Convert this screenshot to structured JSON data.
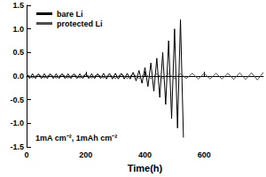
{
  "chart_data": {
    "type": "line",
    "xlabel": "Time(h)",
    "annotation": "1mA cm⁻², 1mAh cm⁻²",
    "xlim": [
      0,
      800
    ],
    "xticks": [
      0,
      200,
      400,
      600
    ],
    "ylim": [
      -1.5,
      1.5
    ],
    "yticks": [
      {
        "value": -1.5,
        "label": "-1.5"
      },
      {
        "value": -1,
        "label": "-1.0"
      },
      {
        "value": -0.5,
        "label": "-0.5"
      },
      {
        "value": 0,
        "label": "0.0"
      },
      {
        "value": 0.5,
        "label": "0.5"
      },
      {
        "value": 1,
        "label": "1.0"
      },
      {
        "value": 1.5,
        "label": "1.5"
      }
    ],
    "grid": false,
    "legend": "upper left",
    "series": [
      {
        "name": "bare Li",
        "color": "#000000",
        "x": [
          0,
          10,
          20,
          30,
          40,
          50,
          60,
          70,
          80,
          90,
          100,
          110,
          120,
          130,
          140,
          150,
          160,
          170,
          180,
          190,
          200,
          210,
          220,
          230,
          240,
          250,
          260,
          270,
          280,
          290,
          300,
          310,
          320,
          330,
          340,
          350,
          360,
          370,
          380,
          390,
          400,
          410,
          420,
          430,
          440,
          450,
          460,
          470,
          480,
          490,
          500,
          510,
          520,
          530
        ],
        "values": [
          0.05,
          -0.05,
          0.05,
          -0.05,
          0.05,
          -0.05,
          0.05,
          -0.05,
          0.05,
          -0.05,
          0.05,
          -0.05,
          0.05,
          -0.05,
          0.05,
          -0.05,
          0.05,
          -0.05,
          0.05,
          -0.05,
          0.05,
          -0.05,
          0.05,
          -0.05,
          0.05,
          -0.05,
          0.06,
          -0.06,
          0.06,
          -0.06,
          0.06,
          -0.06,
          0.06,
          -0.06,
          0.06,
          -0.06,
          0.08,
          -0.1,
          0.12,
          -0.15,
          0.18,
          -0.22,
          0.28,
          -0.32,
          0.38,
          -0.45,
          0.5,
          -0.6,
          0.75,
          -0.9,
          1.0,
          -1.1,
          1.2,
          -1.3
        ]
      },
      {
        "name": "protected Li",
        "color": "#4d4d4d",
        "x": [
          0,
          20,
          40,
          60,
          80,
          100,
          120,
          140,
          160,
          180,
          200,
          220,
          240,
          260,
          280,
          300,
          320,
          340,
          360,
          380,
          400,
          420,
          440,
          460,
          480,
          500,
          520,
          540,
          560,
          580,
          600,
          620,
          640,
          660,
          680,
          700,
          720,
          740,
          760,
          780,
          800
        ],
        "values": [
          0.04,
          -0.04,
          0.04,
          -0.04,
          0.04,
          -0.04,
          0.04,
          -0.04,
          0.04,
          -0.04,
          0.04,
          -0.04,
          0.04,
          -0.04,
          0.04,
          -0.05,
          0.05,
          -0.05,
          0.05,
          -0.05,
          0.05,
          -0.05,
          0.05,
          -0.05,
          0.05,
          -0.05,
          0.05,
          -0.05,
          0.06,
          -0.06,
          0.06,
          -0.06,
          0.06,
          -0.06,
          0.06,
          -0.07,
          0.07,
          -0.07,
          0.07,
          -0.08,
          0.08
        ]
      }
    ]
  }
}
